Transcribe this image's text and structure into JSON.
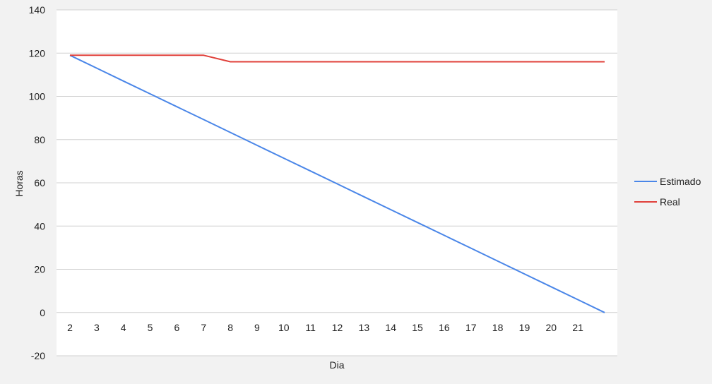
{
  "chart_data": {
    "type": "line",
    "title": "",
    "xlabel": "Dia",
    "ylabel": "Horas",
    "ylim": [
      -20,
      140
    ],
    "yticks": [
      -20,
      0,
      20,
      40,
      60,
      80,
      100,
      120,
      140
    ],
    "categories": [
      "2",
      "3",
      "4",
      "5",
      "6",
      "7",
      "8",
      "9",
      "10",
      "11",
      "12",
      "13",
      "14",
      "15",
      "16",
      "17",
      "18",
      "19",
      "20",
      "21",
      ""
    ],
    "series": [
      {
        "name": "Estimado",
        "color": "#4a86e8",
        "values": [
          119,
          113.05,
          107.1,
          101.15,
          95.2,
          89.25,
          83.3,
          77.35,
          71.4,
          65.45,
          59.5,
          53.55,
          47.6,
          41.65,
          35.7,
          29.75,
          23.8,
          17.85,
          11.9,
          5.95,
          0
        ]
      },
      {
        "name": "Real",
        "color": "#e0403a",
        "values": [
          119,
          119,
          119,
          119,
          119,
          119,
          116,
          116,
          116,
          116,
          116,
          116,
          116,
          116,
          116,
          116,
          116,
          116,
          116,
          116,
          116
        ]
      }
    ],
    "grid": true,
    "legend": "right"
  }
}
